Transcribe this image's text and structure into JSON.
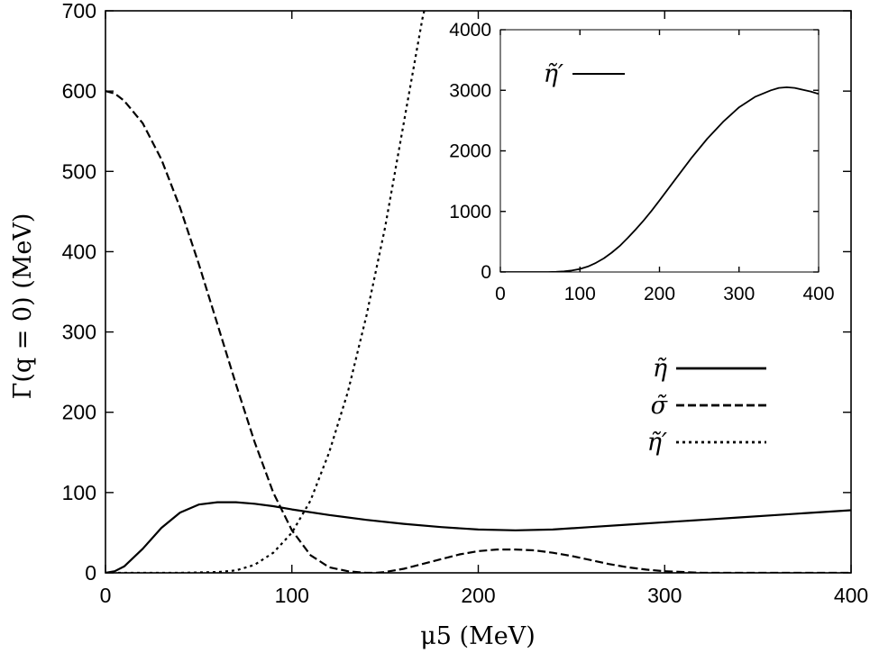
{
  "chart_data": [
    {
      "type": "line",
      "xlabel": "μ5 (MeV)",
      "ylabel": "Γ(q = 0) (MeV)",
      "xlim": [
        0,
        400
      ],
      "ylim": [
        0,
        700
      ],
      "xticks": [
        0,
        100,
        200,
        300,
        400
      ],
      "yticks": [
        0,
        100,
        200,
        300,
        400,
        500,
        600,
        700
      ],
      "grid": false,
      "legend_position": "right",
      "series": [
        {
          "name": "η̃",
          "style": "solid",
          "x": [
            0,
            5,
            10,
            20,
            30,
            40,
            50,
            60,
            70,
            80,
            90,
            100,
            120,
            140,
            160,
            180,
            200,
            220,
            240,
            260,
            280,
            300,
            320,
            340,
            360,
            380,
            400
          ],
          "y": [
            0,
            2,
            8,
            30,
            56,
            75,
            85,
            88,
            88,
            86,
            83,
            79,
            72,
            66,
            61,
            57,
            54,
            53,
            54,
            57,
            60,
            63,
            66,
            69,
            72,
            75,
            78
          ]
        },
        {
          "name": "σ̃",
          "style": "dashed",
          "x": [
            0,
            5,
            10,
            20,
            30,
            40,
            50,
            60,
            70,
            80,
            90,
            100,
            110,
            120,
            130,
            140,
            145,
            150,
            160,
            170,
            180,
            190,
            200,
            210,
            220,
            230,
            240,
            250,
            260,
            270,
            280,
            290,
            300,
            320,
            340,
            360,
            380,
            400
          ],
          "y": [
            600,
            597,
            588,
            560,
            515,
            455,
            385,
            310,
            235,
            163,
            100,
            53,
            22,
            7,
            2,
            0,
            0,
            1,
            5,
            11,
            17,
            23,
            27,
            29,
            29,
            28,
            25,
            21,
            16,
            11,
            7,
            4,
            2,
            0,
            0,
            0,
            0,
            0
          ]
        },
        {
          "name": "η̃′",
          "style": "dotted",
          "x": [
            0,
            40,
            60,
            70,
            80,
            90,
            100,
            110,
            120,
            130,
            140,
            150,
            160,
            170,
            175
          ],
          "y": [
            0,
            0,
            1,
            3,
            10,
            25,
            50,
            90,
            150,
            225,
            320,
            430,
            560,
            690,
            740
          ]
        }
      ]
    },
    {
      "type": "line",
      "xlabel": "",
      "ylabel": "",
      "xlim": [
        0,
        400
      ],
      "ylim": [
        0,
        4000
      ],
      "xticks": [
        0,
        100,
        200,
        300,
        400
      ],
      "yticks": [
        0,
        1000,
        2000,
        3000,
        4000
      ],
      "grid": false,
      "legend_position": "top-left",
      "series": [
        {
          "name": "η̃′",
          "style": "solid",
          "x": [
            0,
            40,
            60,
            70,
            80,
            90,
            100,
            110,
            120,
            130,
            140,
            150,
            160,
            170,
            180,
            190,
            200,
            220,
            240,
            260,
            280,
            300,
            320,
            340,
            350,
            360,
            370,
            380,
            390,
            400
          ],
          "y": [
            0,
            0,
            0,
            3,
            10,
            25,
            50,
            90,
            150,
            225,
            320,
            430,
            560,
            700,
            850,
            1010,
            1180,
            1530,
            1880,
            2200,
            2480,
            2720,
            2890,
            3000,
            3040,
            3050,
            3040,
            3010,
            2980,
            2940
          ]
        }
      ]
    }
  ]
}
